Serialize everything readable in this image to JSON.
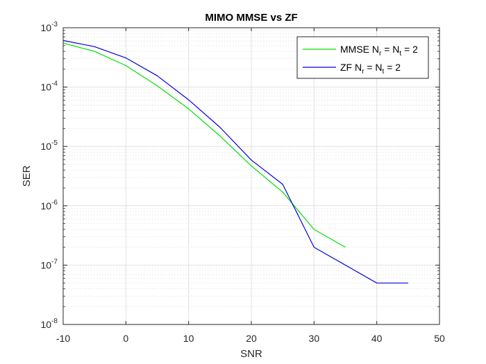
{
  "chart_data": {
    "type": "line",
    "title": "MIMO MMSE vs ZF",
    "xlabel": "SNR",
    "ylabel": "SER",
    "xlim": [
      -10,
      50
    ],
    "ylim": [
      1e-08,
      0.001
    ],
    "yscale": "log",
    "grid": true,
    "minor_grid": true,
    "legend_position": "top-right",
    "x_ticks": [
      "-10",
      "0",
      "10",
      "20",
      "30",
      "40",
      "50"
    ],
    "y_ticks": [
      {
        "base": "10",
        "exp": "-8"
      },
      {
        "base": "10",
        "exp": "-7"
      },
      {
        "base": "10",
        "exp": "-6"
      },
      {
        "base": "10",
        "exp": "-5"
      },
      {
        "base": "10",
        "exp": "-4"
      },
      {
        "base": "10",
        "exp": "-3"
      }
    ],
    "series": [
      {
        "name": "MMSE N_r = N_t = 2",
        "legend": {
          "pre": "MMSE N",
          "sub1": "r",
          "mid": " = N",
          "sub2": "t",
          "post": " = 2"
        },
        "color": "#00e000",
        "x": [
          -10,
          -5,
          0,
          5,
          10,
          15,
          20,
          25,
          30,
          35
        ],
        "y": [
          0.00055,
          0.0004,
          0.00023,
          0.000105,
          4.3e-05,
          1.5e-05,
          4.7e-06,
          1.7e-06,
          4e-07,
          2e-07
        ]
      },
      {
        "name": "ZF N_r = N_t = 2",
        "legend": {
          "pre": "ZF N",
          "sub1": "r",
          "mid": " = N",
          "sub2": "t",
          "post": " = 2"
        },
        "color": "#0000e0",
        "x": [
          -10,
          -5,
          0,
          5,
          10,
          15,
          20,
          25,
          30,
          35,
          40,
          45
        ],
        "y": [
          0.00061,
          0.00048,
          0.00031,
          0.000155,
          6.1e-05,
          2.1e-05,
          5.9e-06,
          2.3e-06,
          2e-07,
          1e-07,
          5e-08,
          5e-08
        ]
      }
    ]
  }
}
